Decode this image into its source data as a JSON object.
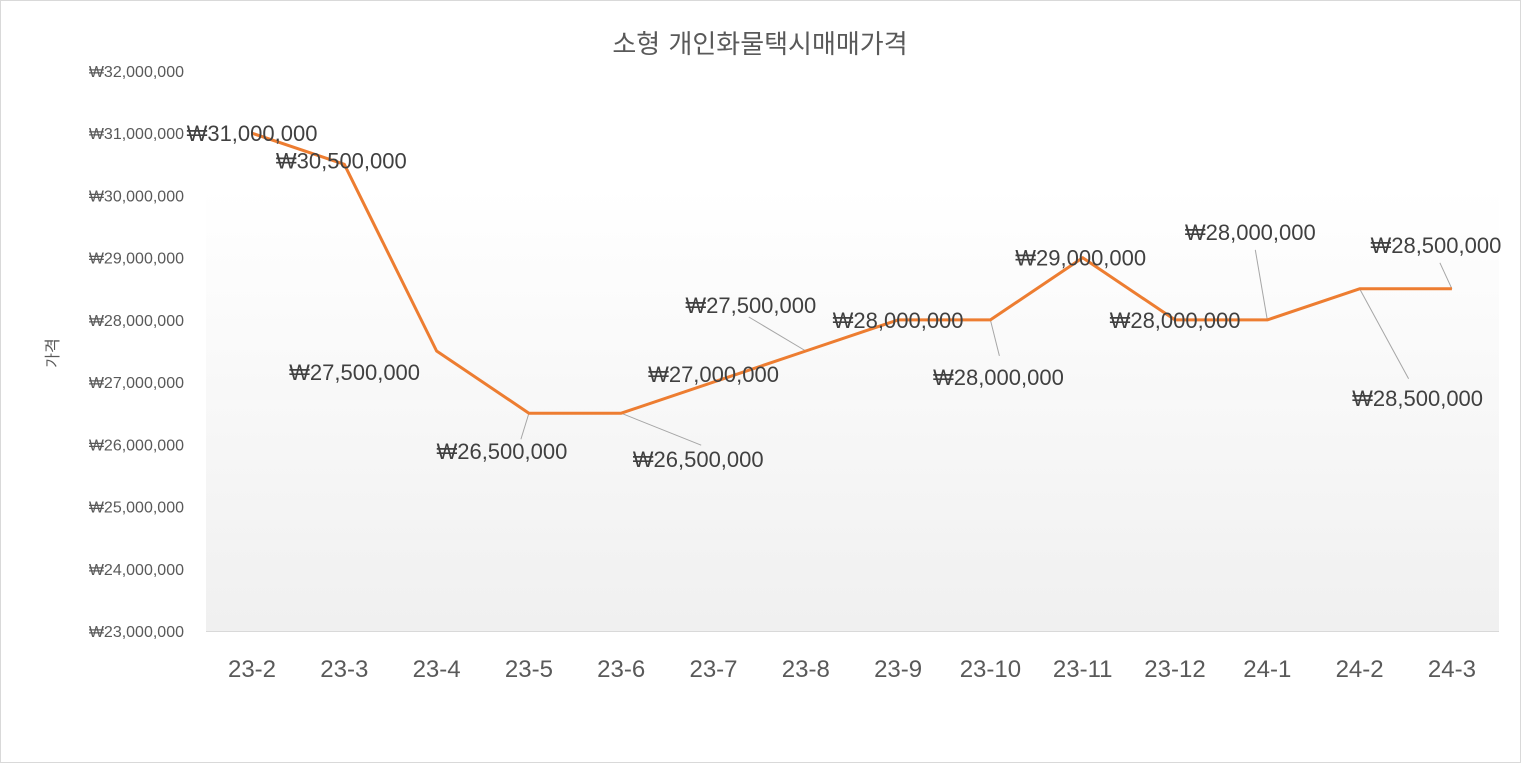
{
  "chart_data": {
    "type": "line",
    "title": "소형 개인화물택시매매가격",
    "xlabel": "",
    "ylabel": "가격",
    "categories": [
      "23-2",
      "23-3",
      "23-4",
      "23-5",
      "23-6",
      "23-7",
      "23-8",
      "23-9",
      "23-10",
      "23-11",
      "23-12",
      "24-1",
      "24-2",
      "24-3"
    ],
    "series": [
      {
        "name": "가격",
        "color": "#ed7d31",
        "values": [
          31000000,
          30500000,
          27500000,
          26500000,
          26500000,
          27000000,
          27500000,
          28000000,
          28000000,
          29000000,
          28000000,
          28000000,
          28500000,
          28500000
        ]
      }
    ],
    "ylim": [
      23000000,
      32000000
    ],
    "yticks": [
      23000000,
      24000000,
      25000000,
      26000000,
      27000000,
      28000000,
      29000000,
      30000000,
      31000000,
      32000000
    ],
    "ytick_labels": [
      "₩23,000,000",
      "₩24,000,000",
      "₩25,000,000",
      "₩26,000,000",
      "₩27,000,000",
      "₩28,000,000",
      "₩29,000,000",
      "₩30,000,000",
      "₩31,000,000",
      "₩32,000,000"
    ],
    "data_labels": [
      "₩31,000,000",
      "₩30,500,000",
      "₩27,500,000",
      "₩26,500,000",
      "₩26,500,000",
      "₩27,000,000",
      "₩27,500,000",
      "₩28,000,000",
      "₩28,000,000",
      "₩29,000,000",
      "₩28,000,000",
      "₩28,000,000",
      "₩28,500,000",
      "₩28,500,000"
    ],
    "legend": "none",
    "grid": false
  }
}
